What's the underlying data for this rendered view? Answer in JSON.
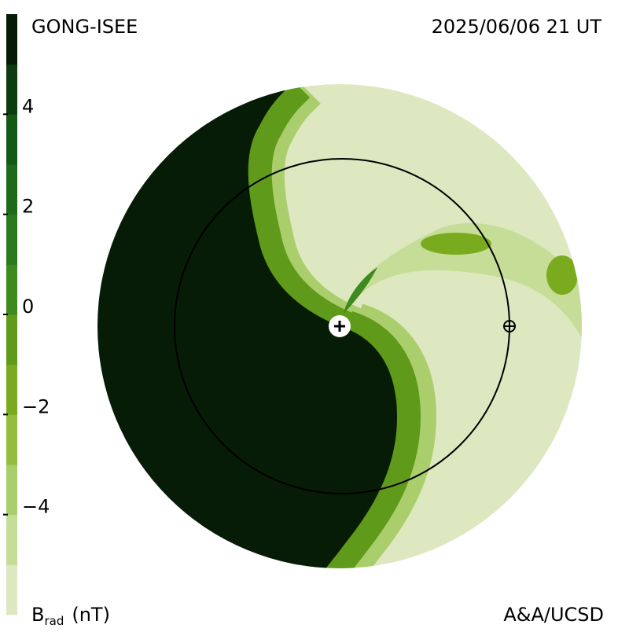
{
  "header": {
    "left": "GONG-ISEE",
    "right": "2025/06/06 21 UT"
  },
  "colorbar": {
    "lim": [
      -6,
      6
    ],
    "ticks": [
      4,
      2,
      0,
      {
        "value": -2,
        "label": "−2"
      },
      {
        "value": -4,
        "label": "−4"
      }
    ],
    "colors": [
      "#dde8c0",
      "#c6dd98",
      "#abce6c",
      "#92bd3e",
      "#7aab1e",
      "#5f9a1a",
      "#3f8a1e",
      "#2b7a1e",
      "#1e6a1a",
      "#145816",
      "#0c3c0f",
      "#061c06"
    ],
    "label": {
      "symbol": "B",
      "subscript": "rad",
      "unit": "(nT)"
    }
  },
  "footer": {
    "right": "A&A/UCSD"
  }
}
